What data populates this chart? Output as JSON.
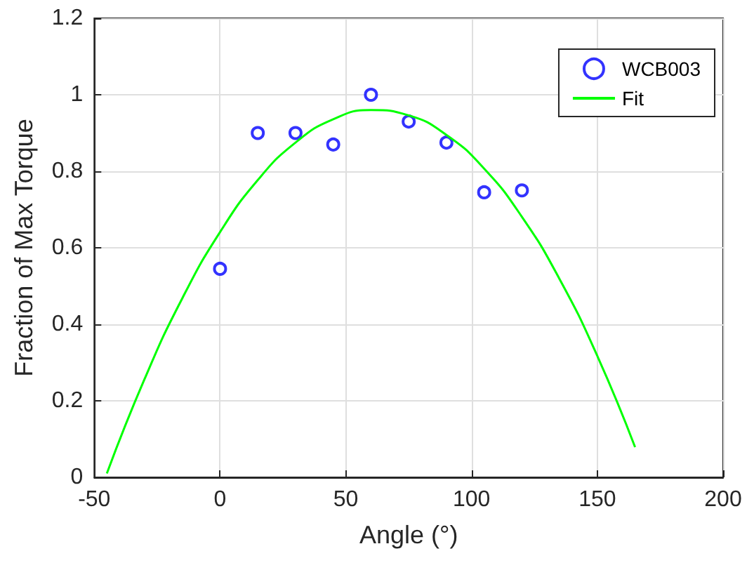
{
  "chart_data": {
    "type": "scatter",
    "xlabel": "Angle (°)",
    "ylabel": "Fraction of Max Torque",
    "xlim": [
      -50,
      200
    ],
    "xticks": [
      -50,
      0,
      50,
      100,
      150,
      200
    ],
    "ylim": [
      0,
      1.2
    ],
    "yticks": [
      0,
      0.2,
      0.4,
      0.6,
      0.8,
      1,
      1.2
    ],
    "grid": true,
    "legend": "top right",
    "series": [
      {
        "name": "WCB003",
        "marker": "circle",
        "color": "#0000ff",
        "x": [
          0,
          15,
          30,
          45,
          60,
          75,
          90,
          105,
          120
        ],
        "values": [
          0.545,
          0.9,
          0.9,
          0.87,
          1.0,
          0.93,
          0.875,
          0.745,
          0.75
        ]
      },
      {
        "name": "Fit",
        "type": "line",
        "marker": "none",
        "color": "#00ff00",
        "x": [
          -45,
          -30,
          -15,
          0,
          15,
          30,
          45,
          60,
          75,
          90,
          105,
          120,
          135,
          150,
          165
        ],
        "values": [
          0.01,
          0.257,
          0.468,
          0.641,
          0.777,
          0.875,
          0.936,
          0.96,
          0.946,
          0.895,
          0.807,
          0.681,
          0.518,
          0.317,
          0.079
        ]
      }
    ]
  }
}
